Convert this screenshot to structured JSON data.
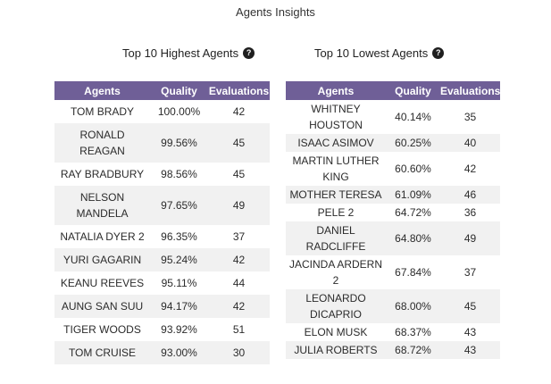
{
  "page_title": "Agents Insights",
  "highest": {
    "title": "Top 10 Highest Agents",
    "help": "?",
    "columns": [
      "Agents",
      "Quality",
      "Evaluations"
    ],
    "rows": [
      [
        "TOM BRADY",
        "100.00%",
        "42"
      ],
      [
        "RONALD REAGAN",
        "99.56%",
        "45"
      ],
      [
        "RAY BRADBURY",
        "98.56%",
        "45"
      ],
      [
        "NELSON MANDELA",
        "97.65%",
        "49"
      ],
      [
        "NATALIA DYER 2",
        "96.35%",
        "37"
      ],
      [
        "YURI GAGARIN",
        "95.24%",
        "42"
      ],
      [
        "KEANU REEVES",
        "95.11%",
        "44"
      ],
      [
        "AUNG SAN SUU",
        "94.17%",
        "42"
      ],
      [
        "TIGER WOODS",
        "93.92%",
        "51"
      ],
      [
        "TOM CRUISE",
        "93.00%",
        "30"
      ]
    ]
  },
  "lowest": {
    "title": "Top 10 Lowest Agents",
    "help": "?",
    "columns": [
      "Agents",
      "Quality",
      "Evaluations"
    ],
    "rows": [
      [
        "WHITNEY HOUSTON",
        "40.14%",
        "35"
      ],
      [
        "ISAAC ASIMOV",
        "60.25%",
        "40"
      ],
      [
        "MARTIN LUTHER KING",
        "60.60%",
        "42"
      ],
      [
        "MOTHER TERESA",
        "61.09%",
        "46"
      ],
      [
        "PELE 2",
        "64.72%",
        "36"
      ],
      [
        "DANIEL RADCLIFFE",
        "64.80%",
        "49"
      ],
      [
        "JACINDA ARDERN 2",
        "67.84%",
        "37"
      ],
      [
        "LEONARDO DICAPRIO",
        "68.00%",
        "45"
      ],
      [
        "ELON MUSK",
        "68.37%",
        "43"
      ],
      [
        "JULIA ROBERTS",
        "68.72%",
        "43"
      ]
    ]
  }
}
